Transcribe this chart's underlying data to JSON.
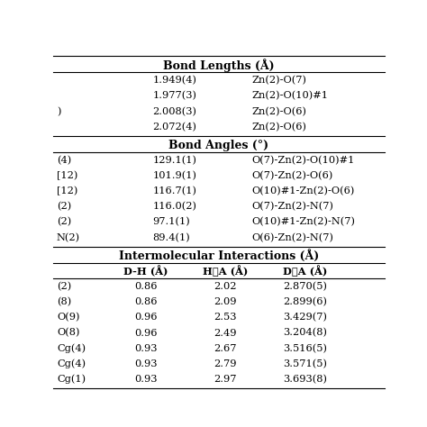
{
  "bond_lengths_title": "Bond Lengths (Å)",
  "bond_lengths_values": [
    "1.949(4)",
    "1.977(3)",
    "2.008(3)",
    "2.072(4)"
  ],
  "bond_lengths_labels": [
    "Zn(2)-O(7)",
    "Zn(2)-O(10)#1",
    "Zn(2)-O(6)",
    "Zn(2)-O(6)"
  ],
  "bond_lengths_col0": [
    "",
    "",
    ")",
    ""
  ],
  "bond_angles_title": "Bond Angles (°)",
  "bond_angles_col0": [
    "(4)",
    "[12)",
    "[12)",
    "(2)",
    "(2)",
    "N(2)"
  ],
  "bond_angles_values": [
    "129.1(1)",
    "101.9(1)",
    "116.7(1)",
    "116.0(2)",
    "97.1(1)",
    "89.4(1)"
  ],
  "bond_angles_labels": [
    "O(7)-Zn(2)-O(10)#1",
    "O(7)-Zn(2)-O(6)",
    "O(10)#1-Zn(2)-O(6)",
    "O(7)-Zn(2)-N(7)",
    "O(10)#1-Zn(2)-N(7)",
    "O(6)-Zn(2)-N(7)"
  ],
  "intermolecular_title": "Intermolecular Interactions (Å)",
  "intermolecular_headers": [
    "D-H (Å)",
    "H⋯A (Å)",
    "D⋯A (Å)"
  ],
  "intermolecular_col0": [
    "(2)",
    "(8)",
    "O(9)",
    "O(8)",
    "Cg(4)",
    "Cg(4)",
    "Cg(1)"
  ],
  "intermolecular_dh": [
    "0.86",
    "0.86",
    "0.96",
    "0.96",
    "0.93",
    "0.93",
    "0.93"
  ],
  "intermolecular_ha": [
    "2.02",
    "2.09",
    "2.53",
    "2.49",
    "2.67",
    "2.79",
    "2.97"
  ],
  "intermolecular_da": [
    "2.870(5)",
    "2.899(6)",
    "3.429(7)",
    "3.204(8)",
    "3.516(5)",
    "3.571(5)",
    "3.693(8)"
  ],
  "bg_color": "#ffffff",
  "text_color": "#000000",
  "title_fontsize": 9,
  "body_fontsize": 8.2
}
